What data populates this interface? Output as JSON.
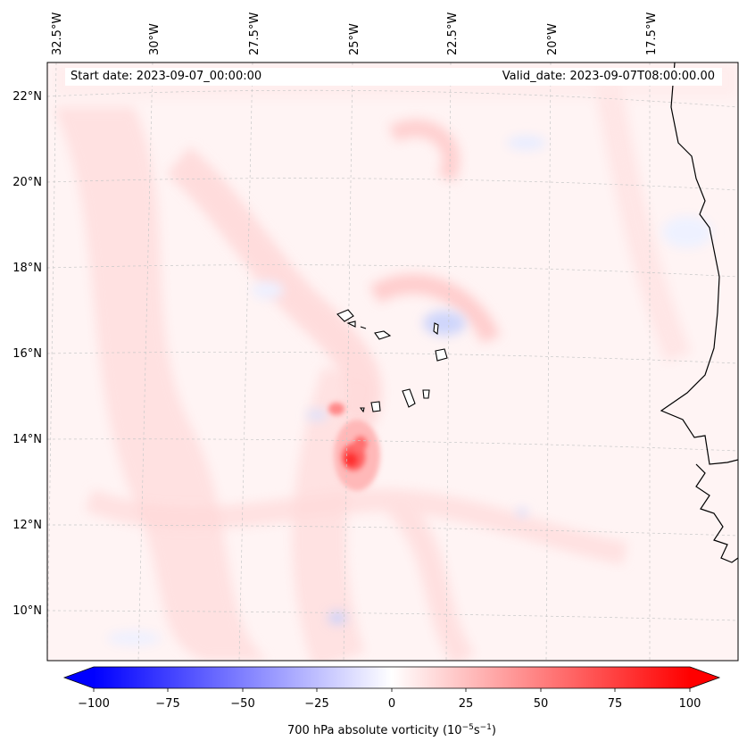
{
  "header": {
    "start_date": "Start date: 2023-09-07_00:00:00",
    "valid_date": "Valid_date: 2023-09-07T08:00:00.00"
  },
  "axes": {
    "lon_labels": [
      "32.5°W",
      "30°W",
      "27.5°W",
      "25°W",
      "22.5°W",
      "20°W",
      "17.5°W"
    ],
    "lat_labels": [
      "22°N",
      "20°N",
      "18°N",
      "16°N",
      "14°N",
      "12°N",
      "10°N"
    ]
  },
  "colorbar": {
    "ticks": [
      "−100",
      "−75",
      "−50",
      "−25",
      "0",
      "25",
      "50",
      "75",
      "100"
    ],
    "label": "700 hPa absolute vorticity (10",
    "label_exp1": "−5",
    "label_mid": "s",
    "label_exp2": "−1",
    "label_end": ")",
    "min": -100,
    "max": 100,
    "colors": {
      "neg": "#0000ff",
      "zero": "#ffffff",
      "pos": "#ff0000"
    }
  },
  "field": {
    "max_vorticity_feature": "strong positive core near 13.5°N 25°W",
    "background_tint": "#fff3f3"
  }
}
